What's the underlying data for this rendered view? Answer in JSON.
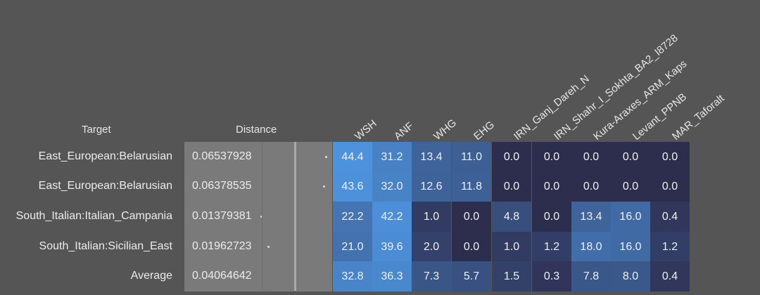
{
  "header": {
    "target_label": "Target",
    "distance_label": "Distance"
  },
  "columns": [
    "WSH",
    "ANF",
    "WHG",
    "EHG",
    "IRN_Ganj_Dareh_N",
    "IRN_Shahr_I_Sokhta_BA2_I8728",
    "Kura-Araxes_ARM_Kaps",
    "Levant_PPNB",
    "MAR_Taforalt"
  ],
  "rows": [
    {
      "target": "East_European:Belarusian",
      "distance": "0.06537928",
      "values": [
        "44.4",
        "31.2",
        "13.4",
        "11.0",
        "0.0",
        "0.0",
        "0.0",
        "0.0",
        "0.0"
      ]
    },
    {
      "target": "East_European:Belarusian",
      "distance": "0.06378535",
      "values": [
        "43.6",
        "32.0",
        "12.6",
        "11.8",
        "0.0",
        "0.0",
        "0.0",
        "0.0",
        "0.0"
      ]
    },
    {
      "target": "South_Italian:Italian_Campania",
      "distance": "0.01379381",
      "values": [
        "22.2",
        "42.2",
        "1.0",
        "0.0",
        "4.8",
        "0.0",
        "13.4",
        "16.0",
        "0.4"
      ]
    },
    {
      "target": "South_Italian:Sicilian_East",
      "distance": "0.01962723",
      "values": [
        "21.0",
        "39.6",
        "2.0",
        "0.0",
        "1.0",
        "1.2",
        "18.0",
        "16.0",
        "1.2"
      ]
    },
    {
      "target": "Average",
      "distance": "0.04064642",
      "values": [
        "32.8",
        "36.3",
        "7.3",
        "5.7",
        "1.5",
        "0.3",
        "7.8",
        "8.0",
        "0.4"
      ]
    }
  ],
  "chart_data": {
    "type": "heatmap",
    "x": [
      "WSH",
      "ANF",
      "WHG",
      "EHG",
      "IRN_Ganj_Dareh_N",
      "IRN_Shahr_I_Sokhta_BA2_I8728",
      "Kura-Araxes_ARM_Kaps",
      "Levant_PPNB",
      "MAR_Taforalt"
    ],
    "y": [
      "East_European:Belarusian",
      "East_European:Belarusian",
      "South_Italian:Italian_Campania",
      "South_Italian:Sicilian_East",
      "Average"
    ],
    "distances": [
      0.06537928,
      0.06378535,
      0.01379381,
      0.01962723,
      0.04064642
    ],
    "values": [
      [
        44.4,
        31.2,
        13.4,
        11.0,
        0.0,
        0.0,
        0.0,
        0.0,
        0.0
      ],
      [
        43.6,
        32.0,
        12.6,
        11.8,
        0.0,
        0.0,
        0.0,
        0.0,
        0.0
      ],
      [
        22.2,
        42.2,
        1.0,
        0.0,
        4.8,
        0.0,
        13.4,
        16.0,
        0.4
      ],
      [
        21.0,
        39.6,
        2.0,
        0.0,
        1.0,
        1.2,
        18.0,
        16.0,
        1.2
      ],
      [
        32.8,
        36.3,
        7.3,
        5.7,
        1.5,
        0.3,
        7.8,
        8.0,
        0.4
      ]
    ],
    "color_low": "#2d2d4d",
    "color_high": "#4d92dc",
    "distance_cell_color": "#7a7a7a"
  }
}
